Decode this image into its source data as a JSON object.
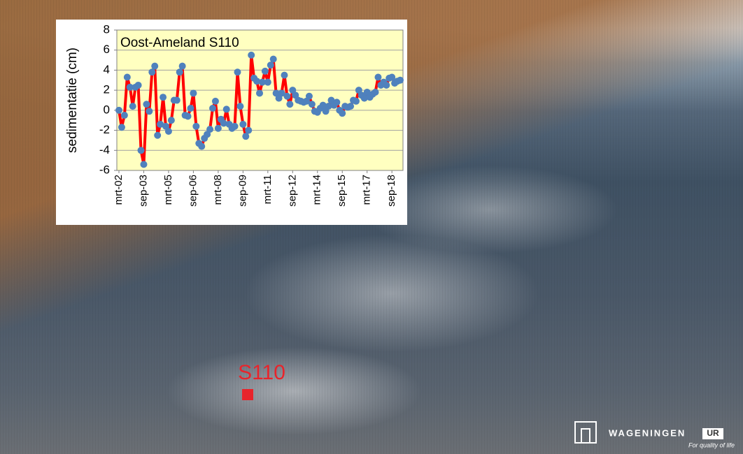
{
  "chart_data": {
    "type": "line",
    "title": "Oost-Ameland S110",
    "y_label": "sedimentatie (cm)",
    "categories": [
      "mrt-02",
      null,
      null,
      null,
      null,
      null,
      null,
      null,
      null,
      "sep-03",
      null,
      null,
      null,
      null,
      null,
      null,
      null,
      null,
      "mrt-05",
      null,
      null,
      null,
      null,
      null,
      null,
      null,
      null,
      "sep-06",
      null,
      null,
      null,
      null,
      null,
      null,
      null,
      null,
      "mrt-08",
      null,
      null,
      null,
      null,
      null,
      null,
      null,
      null,
      "sep-09",
      null,
      null,
      null,
      null,
      null,
      null,
      null,
      null,
      "mrt-11",
      null,
      null,
      null,
      null,
      null,
      null,
      null,
      null,
      "sep-12",
      null,
      null,
      null,
      null,
      null,
      null,
      null,
      null,
      "mrt-14",
      null,
      null,
      null,
      null,
      null,
      null,
      null,
      null,
      "sep-15",
      null,
      null,
      null,
      null,
      null,
      null,
      null,
      null,
      "mrt-17",
      null,
      null,
      null,
      null,
      null,
      null,
      null,
      null,
      "sep-18",
      null,
      null,
      null
    ],
    "values": [
      0,
      -1.7,
      -0.5,
      3.3,
      2.3,
      0.4,
      2.3,
      2.5,
      -4.0,
      -5.4,
      0.6,
      -0.1,
      3.8,
      4.4,
      -2.5,
      -1.4,
      1.3,
      -1.6,
      -2.1,
      -1.0,
      1.0,
      1.0,
      3.8,
      4.4,
      -0.5,
      -0.6,
      0.2,
      1.7,
      -1.6,
      -3.3,
      -3.6,
      -2.8,
      -2.4,
      -1.9,
      0.2,
      0.9,
      -1.8,
      -0.9,
      -1.3,
      0.1,
      -1.4,
      -1.8,
      -1.6,
      3.8,
      0.4,
      -1.4,
      -2.6,
      -2.0,
      5.5,
      3.2,
      2.9,
      1.7,
      2.8,
      3.9,
      2.8,
      4.5,
      5.1,
      1.7,
      1.2,
      1.7,
      3.5,
      1.4,
      0.6,
      2.0,
      1.5,
      1.0,
      0.9,
      0.8,
      0.9,
      1.4,
      0.6,
      -0.1,
      -0.2,
      0.2,
      0.5,
      -0.1,
      0.4,
      1.0,
      0.5,
      0.8,
      0.0,
      -0.3,
      0.4,
      0.3,
      0.4,
      1.0,
      0.9,
      2.0,
      1.5,
      1.2,
      1.8,
      1.3,
      1.6,
      1.8,
      3.3,
      2.5,
      2.8,
      2.5,
      3.2,
      3.3,
      2.7,
      2.9,
      3.0
    ],
    "line_color": "#ff0000",
    "marker_color": "#4f81bd",
    "ylim": [
      -6,
      8
    ],
    "yticks": [
      -6,
      -4,
      -2,
      0,
      2,
      4,
      6,
      8
    ],
    "grid": true
  },
  "site_label": "S110",
  "logo": {
    "name": "WAGENINGEN",
    "suffix": "UR",
    "tagline": "For quality of life"
  }
}
